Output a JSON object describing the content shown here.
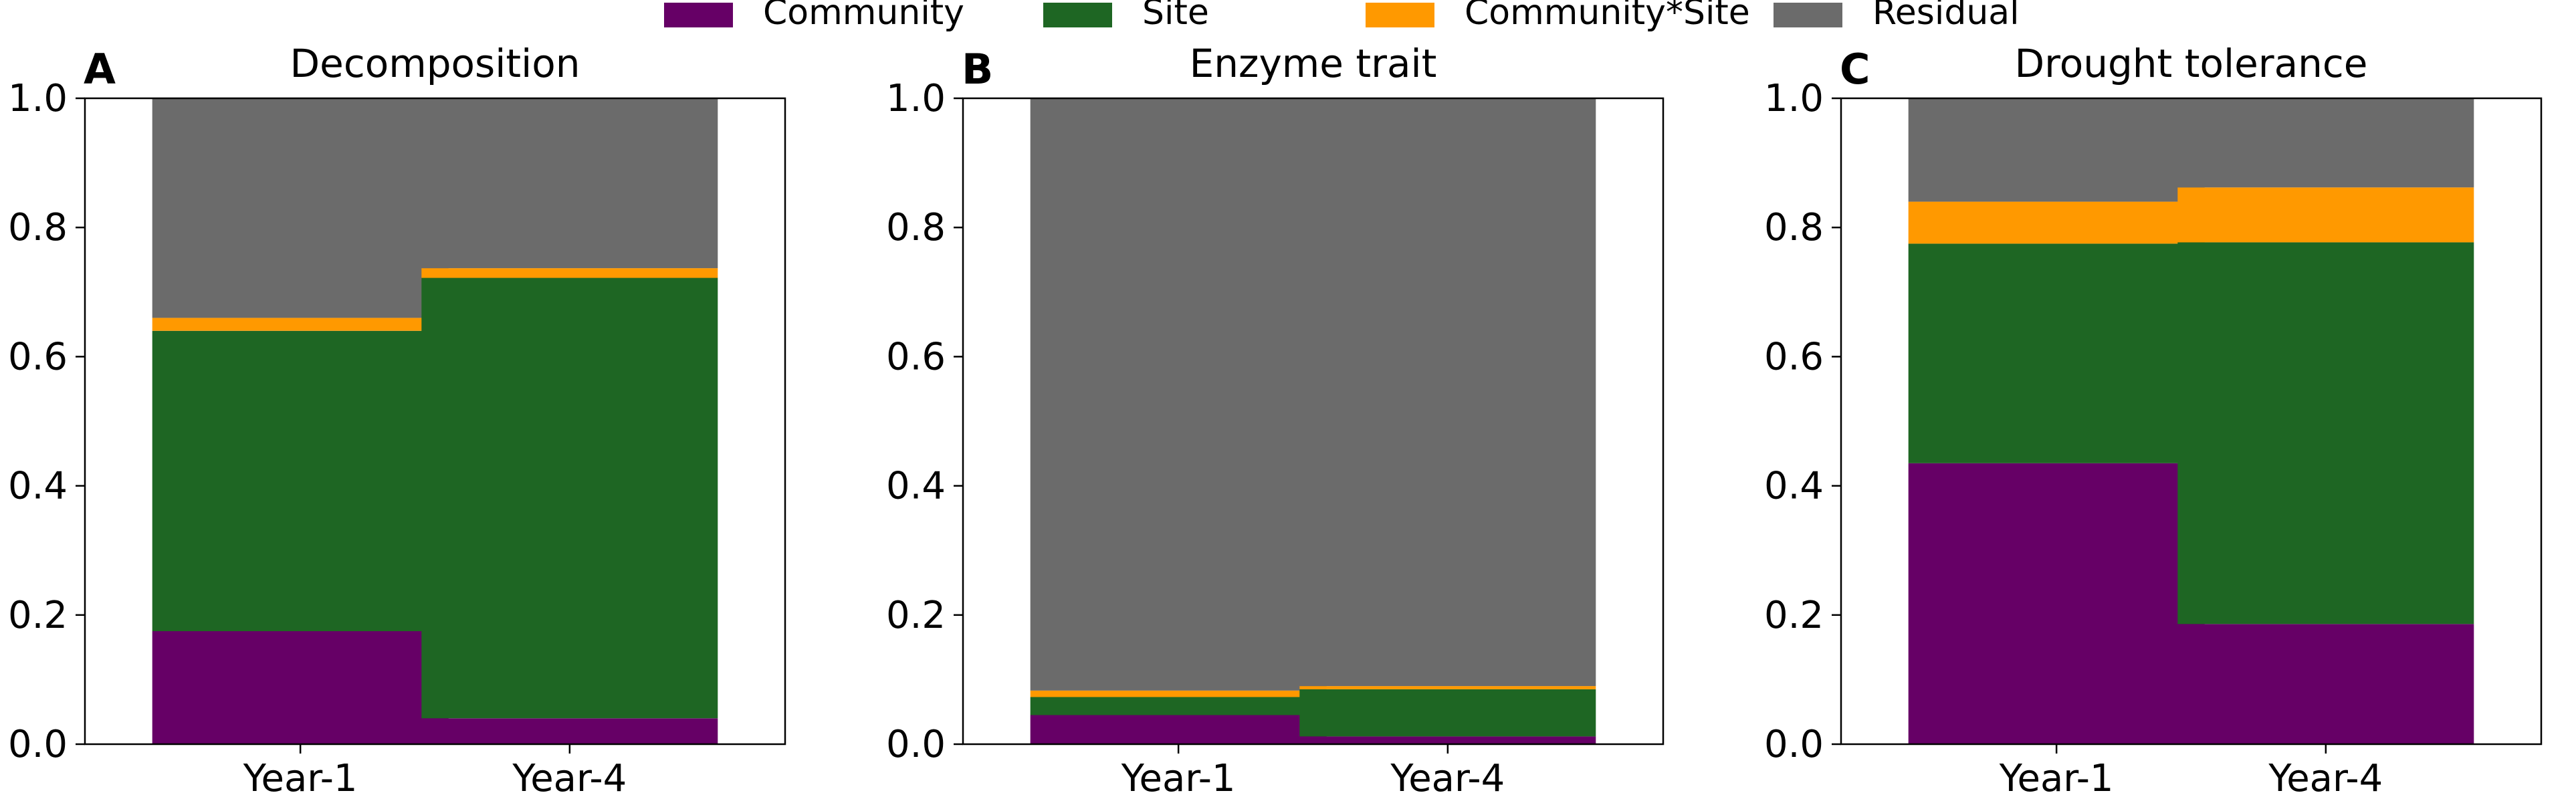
{
  "legend": {
    "placement": "top-center",
    "items": [
      {
        "label": "Community",
        "color": "#660066"
      },
      {
        "label": "Site",
        "color": "#1e6623"
      },
      {
        "label": "Community*Site",
        "color": "#ff9900"
      },
      {
        "label": "Residual",
        "color": "#6b6b6b"
      }
    ]
  },
  "chart_data": [
    {
      "type": "bar",
      "stacked": true,
      "panel_label": "A",
      "title": "Decomposition",
      "categories": [
        "Year-1",
        "Year-4"
      ],
      "ylim": [
        0,
        1.0
      ],
      "yticks": [
        "0.0",
        "0.2",
        "0.4",
        "0.6",
        "0.8",
        "1.0"
      ],
      "grid": false,
      "series": [
        {
          "name": "Community",
          "color": "#660066",
          "values": [
            0.175,
            0.04
          ]
        },
        {
          "name": "Site",
          "color": "#1e6623",
          "values": [
            0.465,
            0.682
          ]
        },
        {
          "name": "Community*Site",
          "color": "#ff9900",
          "values": [
            0.02,
            0.015
          ]
        },
        {
          "name": "Residual",
          "color": "#6b6b6b",
          "values": [
            0.34,
            0.263
          ]
        }
      ]
    },
    {
      "type": "bar",
      "stacked": true,
      "panel_label": "B",
      "title": "Enzyme trait",
      "categories": [
        "Year-1",
        "Year-4"
      ],
      "ylim": [
        0,
        1.0
      ],
      "yticks": [
        "0.0",
        "0.2",
        "0.4",
        "0.6",
        "0.8",
        "1.0"
      ],
      "grid": false,
      "series": [
        {
          "name": "Community",
          "color": "#660066",
          "values": [
            0.045,
            0.012
          ]
        },
        {
          "name": "Site",
          "color": "#1e6623",
          "values": [
            0.028,
            0.073
          ]
        },
        {
          "name": "Community*Site",
          "color": "#ff9900",
          "values": [
            0.01,
            0.005
          ]
        },
        {
          "name": "Residual",
          "color": "#6b6b6b",
          "values": [
            0.917,
            0.91
          ]
        }
      ]
    },
    {
      "type": "bar",
      "stacked": true,
      "panel_label": "C",
      "title": "Drought tolerance",
      "categories": [
        "Year-1",
        "Year-4"
      ],
      "ylim": [
        0,
        1.0
      ],
      "yticks": [
        "0.0",
        "0.2",
        "0.4",
        "0.6",
        "0.8",
        "1.0"
      ],
      "grid": false,
      "series": [
        {
          "name": "Community",
          "color": "#660066",
          "values": [
            0.435,
            0.186
          ]
        },
        {
          "name": "Site",
          "color": "#1e6623",
          "values": [
            0.34,
            0.591
          ]
        },
        {
          "name": "Community*Site",
          "color": "#ff9900",
          "values": [
            0.065,
            0.085
          ]
        },
        {
          "name": "Residual",
          "color": "#6b6b6b",
          "values": [
            0.16,
            0.138
          ]
        }
      ]
    }
  ]
}
